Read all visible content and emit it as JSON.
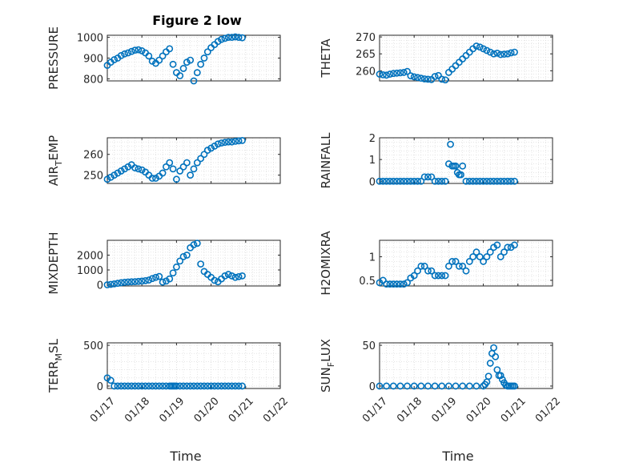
{
  "figure": {
    "title": "Figure 2 low"
  },
  "style": {
    "marker_color": "#0072BD",
    "axis_color": "#262626",
    "grid_color": "#D6D6D6"
  },
  "chart_data": [
    {
      "type": "scatter",
      "ylabel": "PRESSURE",
      "xlabel": "",
      "xlim": [
        "01/17",
        "01/22"
      ],
      "xticks": [
        "01/17",
        "01/18",
        "01/19",
        "01/20",
        "01/21",
        "01/22"
      ],
      "show_xticklabels": false,
      "ylim": [
        790,
        1010
      ],
      "yticks": [
        800,
        900,
        1000
      ],
      "grid": true,
      "x_days": [
        0,
        0.1,
        0.2,
        0.3,
        0.4,
        0.5,
        0.6,
        0.7,
        0.8,
        0.9,
        1.0,
        1.1,
        1.2,
        1.3,
        1.4,
        1.5,
        1.6,
        1.7,
        1.8,
        1.9,
        2.0,
        2.1,
        2.2,
        2.3,
        2.4,
        2.5,
        2.6,
        2.7,
        2.8,
        2.9,
        3.0,
        3.1,
        3.2,
        3.3,
        3.4,
        3.5,
        3.6,
        3.7,
        3.8,
        3.9
      ],
      "values": [
        865,
        880,
        892,
        900,
        912,
        920,
        925,
        932,
        938,
        940,
        935,
        925,
        910,
        885,
        875,
        890,
        910,
        930,
        945,
        870,
        830,
        815,
        850,
        880,
        890,
        790,
        830,
        870,
        900,
        930,
        950,
        965,
        980,
        990,
        995,
        1000,
        1000,
        1002,
        1000,
        998
      ]
    },
    {
      "type": "scatter",
      "ylabel": "THETA",
      "xlabel": "",
      "xlim": [
        "01/17",
        "01/22"
      ],
      "xticks": [
        "01/17",
        "01/18",
        "01/19",
        "01/20",
        "01/21",
        "01/22"
      ],
      "show_xticklabels": false,
      "ylim": [
        257,
        270.5
      ],
      "yticks": [
        260,
        265,
        270
      ],
      "grid": true,
      "x_days": [
        0,
        0.1,
        0.2,
        0.3,
        0.4,
        0.5,
        0.6,
        0.7,
        0.8,
        0.9,
        1.0,
        1.1,
        1.2,
        1.3,
        1.4,
        1.5,
        1.6,
        1.7,
        1.8,
        1.9,
        2.0,
        2.1,
        2.2,
        2.3,
        2.4,
        2.5,
        2.6,
        2.7,
        2.8,
        2.9,
        3.0,
        3.1,
        3.2,
        3.3,
        3.4,
        3.5,
        3.6,
        3.7,
        3.8,
        3.9
      ],
      "values": [
        259,
        258.8,
        258.7,
        259,
        259.2,
        259.3,
        259.4,
        259.5,
        259.8,
        258.5,
        258.2,
        258,
        257.8,
        257.6,
        257.5,
        257.4,
        258.3,
        258.6,
        257.5,
        257.3,
        259.5,
        260.5,
        261.5,
        262.5,
        263.5,
        264.5,
        265.5,
        266.5,
        267.3,
        267,
        266.5,
        266,
        265.5,
        265,
        265.2,
        264.8,
        264.9,
        265,
        265.3,
        265.5
      ]
    },
    {
      "type": "scatter",
      "ylabel": "AIR_TEMP",
      "xlabel": "",
      "xlim": [
        "01/17",
        "01/22"
      ],
      "xticks": [
        "01/17",
        "01/18",
        "01/19",
        "01/20",
        "01/21",
        "01/22"
      ],
      "show_xticklabels": false,
      "ylim": [
        246,
        268
      ],
      "yticks": [
        250,
        260
      ],
      "grid": true,
      "x_days": [
        0,
        0.1,
        0.2,
        0.3,
        0.4,
        0.5,
        0.6,
        0.7,
        0.8,
        0.9,
        1.0,
        1.1,
        1.2,
        1.3,
        1.4,
        1.5,
        1.6,
        1.7,
        1.8,
        1.9,
        2.0,
        2.1,
        2.2,
        2.3,
        2.4,
        2.5,
        2.6,
        2.7,
        2.8,
        2.9,
        3.0,
        3.1,
        3.2,
        3.3,
        3.4,
        3.5,
        3.6,
        3.7,
        3.8,
        3.9
      ],
      "values": [
        248,
        249,
        250,
        251,
        252,
        253,
        254,
        255,
        253.5,
        253,
        252.5,
        251.5,
        250,
        248.5,
        248.5,
        249.5,
        251,
        254,
        256,
        253,
        248,
        252,
        254,
        256,
        250,
        253,
        256,
        258,
        260,
        262,
        263,
        264,
        265,
        265.5,
        265.8,
        266,
        266,
        266.3,
        266.5,
        266.7
      ]
    },
    {
      "type": "scatter",
      "ylabel": "RAINFALL",
      "xlabel": "",
      "xlim": [
        "01/17",
        "01/22"
      ],
      "xticks": [
        "01/17",
        "01/18",
        "01/19",
        "01/20",
        "01/21",
        "01/22"
      ],
      "show_xticklabels": false,
      "ylim": [
        -0.1,
        2
      ],
      "yticks": [
        0,
        1,
        2
      ],
      "grid": true,
      "x_days": [
        0,
        0.1,
        0.2,
        0.3,
        0.4,
        0.5,
        0.6,
        0.7,
        0.8,
        0.9,
        1.0,
        1.1,
        1.2,
        1.3,
        1.4,
        1.5,
        1.6,
        1.7,
        1.8,
        1.9,
        2.0,
        2.05,
        2.1,
        2.15,
        2.2,
        2.25,
        2.3,
        2.35,
        2.4,
        2.5,
        2.6,
        2.7,
        2.8,
        2.9,
        3.0,
        3.1,
        3.2,
        3.3,
        3.4,
        3.5,
        3.6,
        3.7,
        3.8,
        3.9
      ],
      "values": [
        0,
        0,
        0,
        0,
        0,
        0,
        0,
        0,
        0,
        0,
        0,
        0,
        0,
        0.2,
        0.2,
        0.2,
        0,
        0,
        0,
        0,
        0.8,
        1.7,
        0.7,
        0.7,
        0.7,
        0.4,
        0.3,
        0.3,
        0.7,
        0,
        0,
        0,
        0,
        0,
        0,
        0,
        0,
        0,
        0,
        0,
        0,
        0,
        0,
        0
      ]
    },
    {
      "type": "scatter",
      "ylabel": "MIXDEPTH",
      "xlabel": "",
      "xlim": [
        "01/17",
        "01/22"
      ],
      "xticks": [
        "01/17",
        "01/18",
        "01/19",
        "01/20",
        "01/21",
        "01/22"
      ],
      "show_xticklabels": false,
      "ylim": [
        -80,
        3000
      ],
      "yticks": [
        0,
        1000,
        2000
      ],
      "grid": true,
      "x_days": [
        0,
        0.1,
        0.2,
        0.3,
        0.4,
        0.5,
        0.6,
        0.7,
        0.8,
        0.9,
        1.0,
        1.1,
        1.2,
        1.3,
        1.4,
        1.5,
        1.6,
        1.7,
        1.8,
        1.9,
        2.0,
        2.1,
        2.2,
        2.3,
        2.4,
        2.5,
        2.6,
        2.7,
        2.8,
        2.9,
        3.0,
        3.1,
        3.2,
        3.3,
        3.4,
        3.5,
        3.6,
        3.7,
        3.8,
        3.9
      ],
      "values": [
        0,
        30,
        60,
        100,
        140,
        170,
        190,
        200,
        210,
        230,
        250,
        280,
        320,
        420,
        500,
        560,
        180,
        250,
        400,
        800,
        1200,
        1600,
        1900,
        2000,
        2500,
        2700,
        2800,
        1400,
        900,
        700,
        500,
        300,
        200,
        400,
        600,
        700,
        600,
        500,
        550,
        600
      ]
    },
    {
      "type": "scatter",
      "ylabel": "H2OMIXRA",
      "xlabel": "",
      "xlim": [
        "01/17",
        "01/22"
      ],
      "xticks": [
        "01/17",
        "01/18",
        "01/19",
        "01/20",
        "01/21",
        "01/22"
      ],
      "show_xticklabels": false,
      "ylim": [
        0.38,
        1.35
      ],
      "yticks": [
        0.5,
        1
      ],
      "grid": true,
      "x_days": [
        0,
        0.1,
        0.2,
        0.3,
        0.4,
        0.5,
        0.6,
        0.7,
        0.8,
        0.9,
        1.0,
        1.1,
        1.2,
        1.3,
        1.4,
        1.5,
        1.6,
        1.7,
        1.8,
        1.9,
        2.0,
        2.1,
        2.2,
        2.3,
        2.4,
        2.5,
        2.6,
        2.7,
        2.8,
        2.9,
        3.0,
        3.1,
        3.2,
        3.3,
        3.4,
        3.5,
        3.6,
        3.7,
        3.8,
        3.9
      ],
      "values": [
        0.45,
        0.5,
        0.42,
        0.42,
        0.42,
        0.42,
        0.42,
        0.42,
        0.45,
        0.55,
        0.6,
        0.7,
        0.8,
        0.8,
        0.7,
        0.7,
        0.6,
        0.6,
        0.6,
        0.6,
        0.8,
        0.9,
        0.9,
        0.8,
        0.8,
        0.7,
        0.9,
        1.0,
        1.1,
        1.0,
        0.9,
        1.0,
        1.1,
        1.2,
        1.25,
        1.0,
        1.1,
        1.2,
        1.2,
        1.25
      ]
    },
    {
      "type": "scatter",
      "ylabel": "TERR_MSL",
      "xlabel": "Time",
      "xlim": [
        "01/17",
        "01/22"
      ],
      "xticks": [
        "01/17",
        "01/18",
        "01/19",
        "01/20",
        "01/21",
        "01/22"
      ],
      "show_xticklabels": true,
      "ylim": [
        -30,
        530
      ],
      "yticks": [
        0,
        500
      ],
      "grid": true,
      "x_days": [
        0,
        0.1,
        0.2,
        0.3,
        0.4,
        0.5,
        0.6,
        0.7,
        0.8,
        0.9,
        1.0,
        1.1,
        1.2,
        1.3,
        1.4,
        1.5,
        1.6,
        1.7,
        1.8,
        1.85,
        1.9,
        1.95,
        2.0,
        2.1,
        2.2,
        2.3,
        2.4,
        2.5,
        2.6,
        2.7,
        2.8,
        2.9,
        3.0,
        3.1,
        3.2,
        3.3,
        3.4,
        3.5,
        3.6,
        3.7,
        3.8,
        3.9
      ],
      "values": [
        100,
        70,
        0,
        0,
        0,
        0,
        0,
        0,
        0,
        0,
        0,
        0,
        0,
        0,
        0,
        0,
        0,
        0,
        0,
        0,
        0,
        0,
        0,
        0,
        0,
        0,
        0,
        0,
        0,
        0,
        0,
        0,
        0,
        0,
        0,
        0,
        0,
        0,
        0,
        0,
        0,
        0
      ]
    },
    {
      "type": "scatter",
      "ylabel": "SUN_FLUX",
      "xlabel": "Time",
      "xlim": [
        "01/17",
        "01/22"
      ],
      "xticks": [
        "01/17",
        "01/18",
        "01/19",
        "01/20",
        "01/21",
        "01/22"
      ],
      "show_xticklabels": true,
      "ylim": [
        -3,
        53
      ],
      "yticks": [
        0,
        50
      ],
      "grid": true,
      "x_days": [
        0,
        0.2,
        0.4,
        0.6,
        0.8,
        1.0,
        1.2,
        1.4,
        1.6,
        1.8,
        2.0,
        2.2,
        2.4,
        2.6,
        2.8,
        3.0,
        3.05,
        3.1,
        3.15,
        3.2,
        3.25,
        3.3,
        3.35,
        3.4,
        3.45,
        3.5,
        3.55,
        3.6,
        3.65,
        3.7,
        3.75,
        3.8,
        3.85,
        3.9
      ],
      "values": [
        0,
        0,
        0,
        0,
        0,
        0,
        0,
        0,
        0,
        0,
        0,
        0,
        0,
        0,
        0,
        0,
        2,
        5,
        12,
        28,
        40,
        47,
        36,
        20,
        13,
        13,
        8,
        4,
        1,
        0,
        0,
        0,
        0,
        0
      ]
    }
  ]
}
